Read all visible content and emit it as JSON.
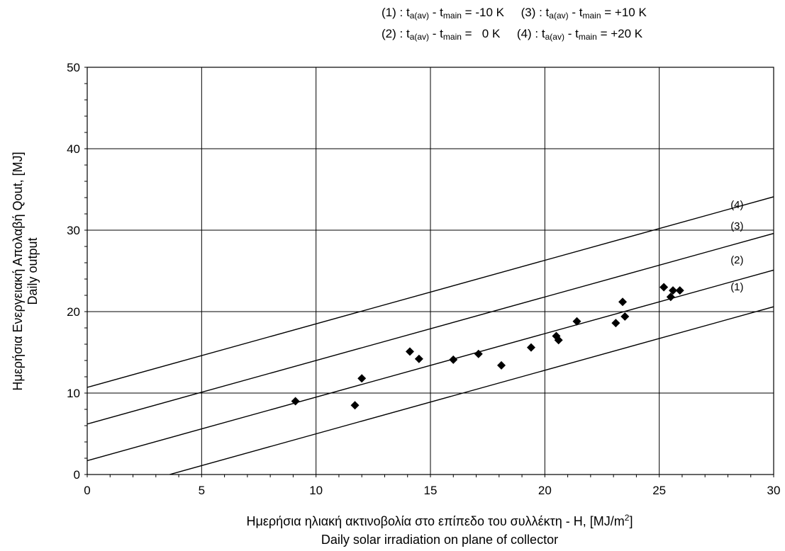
{
  "legend": {
    "items": [
      {
        "id": "(1)",
        "op": "-",
        "eq": "=",
        "value": "-10 K"
      },
      {
        "id": "(2)",
        "op": "-",
        "eq": "=",
        "value": "0 K"
      },
      {
        "id": "(3)",
        "op": "-",
        "eq": "=",
        "value": "+10 K"
      },
      {
        "id": "(4)",
        "op": "-",
        "eq": "=",
        "value": "+20 K"
      }
    ],
    "sep": " : ",
    "t_sym": "t",
    "sub_a": "a(av)",
    "sub_main": "main"
  },
  "axis_labels": {
    "x_line1_prefix": "Ημερήσια ηλιακή ακτινοβολία στο επίπεδο του συλλέκτη - H, [MJ/m",
    "x_line1_sup": "2",
    "x_line1_suffix": "]",
    "x_line2": "Daily solar irradiation on plane of collector",
    "y_line1": "Ημερήσια Ενεργειακή Απολαβή Qout, [MJ]",
    "y_line2": "Daily output"
  },
  "chart_data": {
    "type": "scatter",
    "xlim": [
      0,
      30
    ],
    "ylim": [
      0,
      50
    ],
    "x_ticks": [
      "0",
      "5",
      "10",
      "15",
      "20",
      "25",
      "30"
    ],
    "y_ticks": [
      "0",
      "10",
      "20",
      "30",
      "40",
      "50"
    ],
    "grid": true,
    "points": [
      [
        9.1,
        9.0
      ],
      [
        11.7,
        8.5
      ],
      [
        12.0,
        11.8
      ],
      [
        14.1,
        15.1
      ],
      [
        14.5,
        14.2
      ],
      [
        16.0,
        14.1
      ],
      [
        17.1,
        14.8
      ],
      [
        18.1,
        13.4
      ],
      [
        19.4,
        15.6
      ],
      [
        20.5,
        17.0
      ],
      [
        20.6,
        16.5
      ],
      [
        21.4,
        18.8
      ],
      [
        23.1,
        18.6
      ],
      [
        23.4,
        21.2
      ],
      [
        23.5,
        19.4
      ],
      [
        25.2,
        23.0
      ],
      [
        25.5,
        21.8
      ],
      [
        25.6,
        22.6
      ],
      [
        25.9,
        22.6
      ]
    ],
    "lines": [
      {
        "label": "(1)",
        "x": [
          3.6,
          30
        ],
        "y": [
          0,
          20.6
        ]
      },
      {
        "label": "(2)",
        "x": [
          0,
          30
        ],
        "y": [
          1.7,
          25.1
        ]
      },
      {
        "label": "(3)",
        "x": [
          0,
          30
        ],
        "y": [
          6.2,
          29.6
        ]
      },
      {
        "label": "(4)",
        "x": [
          0,
          30
        ],
        "y": [
          10.7,
          34.1
        ]
      }
    ],
    "line_labels": [
      {
        "text": "(1)",
        "x": 28.4,
        "y": 22.6
      },
      {
        "text": "(2)",
        "x": 28.4,
        "y": 25.9
      },
      {
        "text": "(3)",
        "x": 28.4,
        "y": 30.1
      },
      {
        "text": "(4)",
        "x": 28.4,
        "y": 32.7
      }
    ]
  }
}
